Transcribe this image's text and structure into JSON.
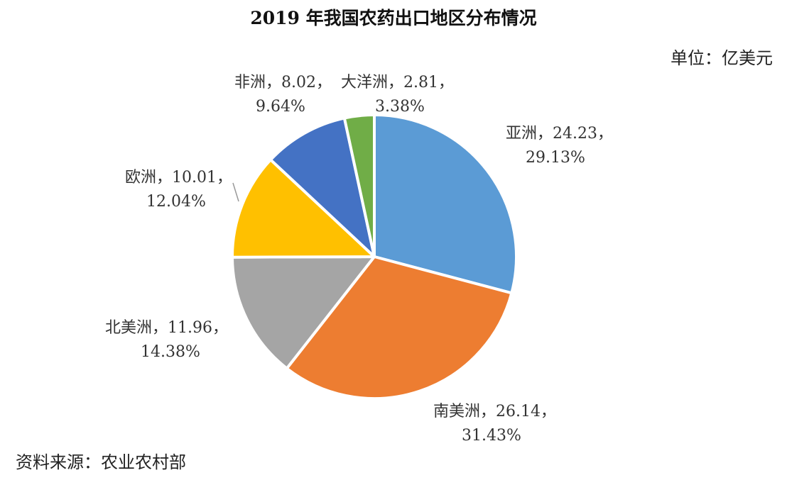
{
  "chart_data": {
    "type": "pie",
    "title": "2019 年我国农药出口地区分布情况",
    "unit_label": "单位：亿美元",
    "source": "资料来源：农业农村部",
    "slices": [
      {
        "name": "亚洲",
        "value": 24.23,
        "percent": "29.13%",
        "label_line1": "亚洲，24.23，",
        "label_line2": "29.13%",
        "color": "#5B9BD5"
      },
      {
        "name": "南美洲",
        "value": 26.14,
        "percent": "31.43%",
        "label_line1": "南美洲，26.14，",
        "label_line2": "31.43%",
        "color": "#ED7D31"
      },
      {
        "name": "北美洲",
        "value": 11.96,
        "percent": "14.38%",
        "label_line1": "北美洲，11.96，",
        "label_line2": "14.38%",
        "color": "#A5A5A5"
      },
      {
        "name": "欧洲",
        "value": 10.01,
        "percent": "12.04%",
        "label_line1": "欧洲，10.01，",
        "label_line2": "12.04%",
        "color": "#FFC000"
      },
      {
        "name": "非洲",
        "value": 8.02,
        "percent": "9.64%",
        "label_line1": "非洲，8.02，",
        "label_line2": "9.64%",
        "color": "#4472C4"
      },
      {
        "name": "大洋洲",
        "value": 2.81,
        "percent": "3.38%",
        "label_line1": "大洋洲，2.81，",
        "label_line2": "3.38%",
        "color": "#70AD47"
      }
    ]
  }
}
